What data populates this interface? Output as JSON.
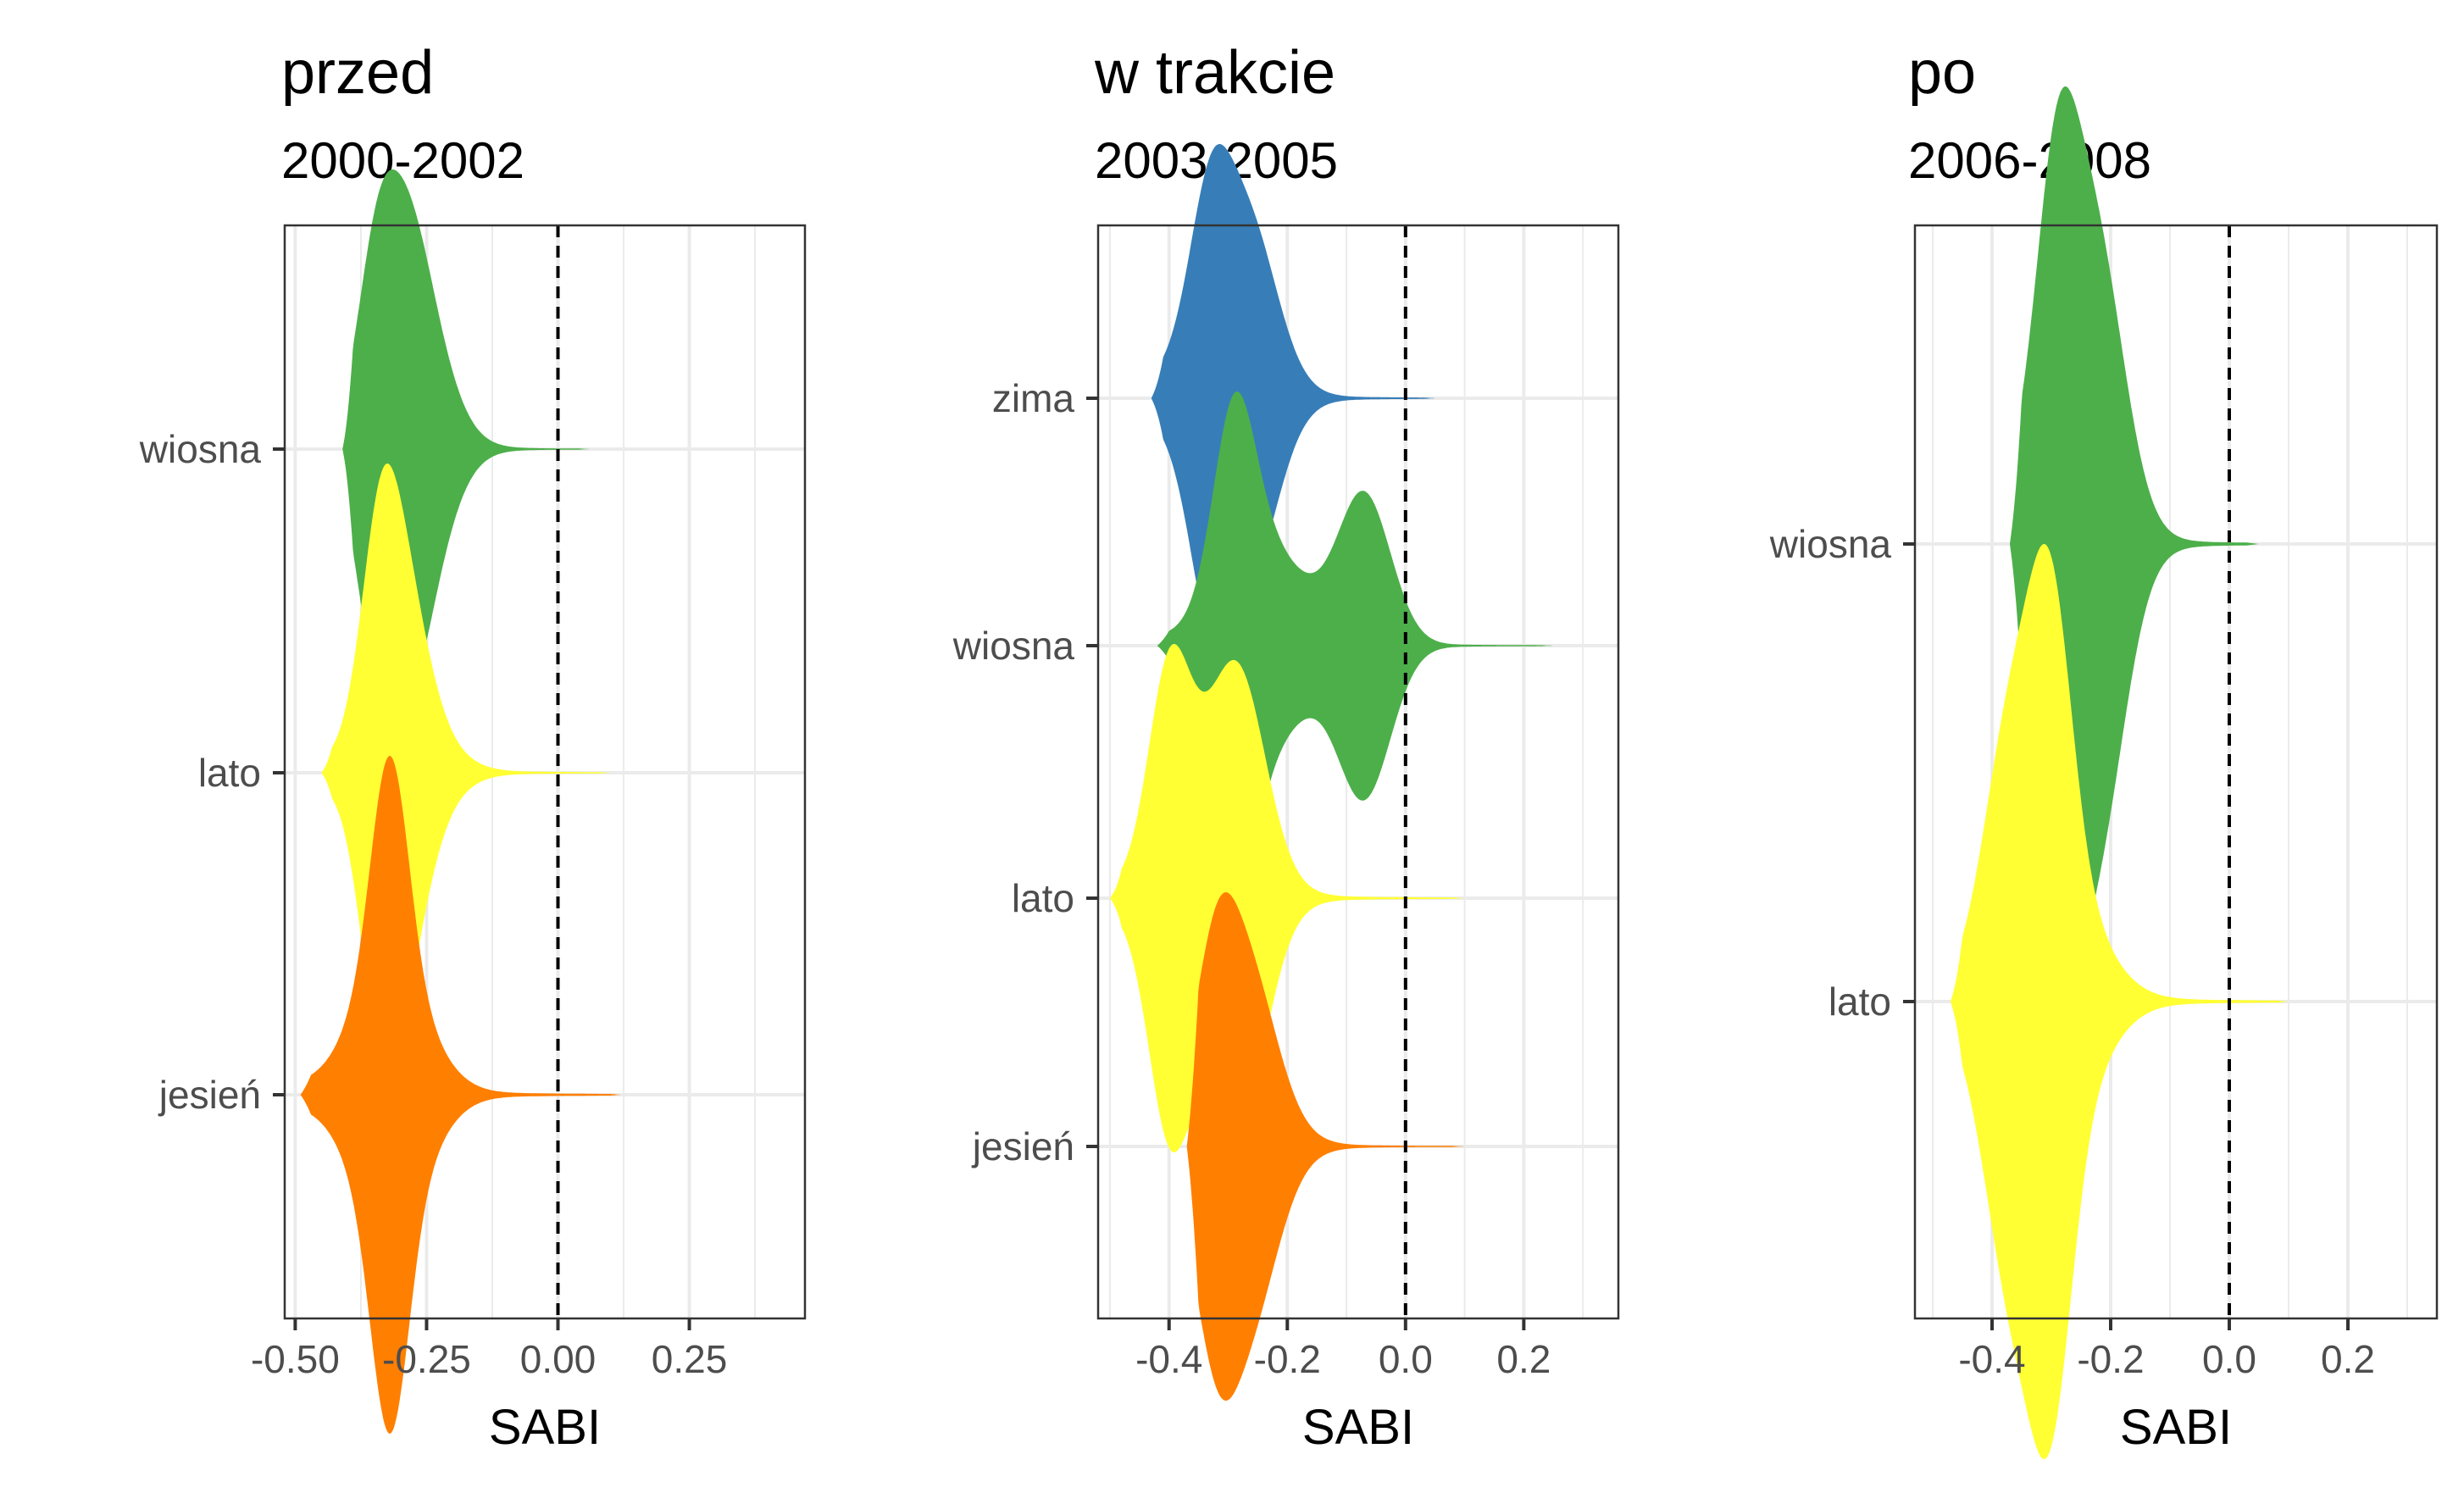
{
  "chart_data": [
    {
      "type": "violin",
      "title": "przed",
      "subtitle": "2000-2002",
      "xlabel": "SABI",
      "xlim": [
        -0.52,
        0.47
      ],
      "xticks": [
        -0.5,
        -0.25,
        0.0,
        0.25
      ],
      "xtick_labels": [
        "-0.50",
        "-0.25",
        "0.00",
        "0.25"
      ],
      "reference_line": 0.0,
      "categories": [
        "wiosna",
        "lato",
        "jesień"
      ],
      "series": [
        {
          "season": "wiosna",
          "color": "#4daf4a",
          "range": [
            -0.41,
            0.06
          ],
          "peaks": [
            -0.35,
            -0.3,
            -0.27
          ],
          "median": -0.29
        },
        {
          "season": "lato",
          "color": "#ffff33",
          "range": [
            -0.45,
            0.1
          ],
          "peaks": [
            -0.34,
            -0.3
          ],
          "median": -0.3
        },
        {
          "season": "jesień",
          "color": "#ff7f00",
          "range": [
            -0.49,
            0.12
          ],
          "peaks": [
            -0.32
          ],
          "median": -0.32
        }
      ]
    },
    {
      "type": "violin",
      "title": "w trakcie",
      "subtitle": "2003-2005",
      "xlabel": "SABI",
      "xlim": [
        -0.52,
        0.36
      ],
      "xticks": [
        -0.4,
        -0.2,
        0.0,
        0.2
      ],
      "xtick_labels": [
        "-0.4",
        "-0.2",
        "0.0",
        "0.2"
      ],
      "reference_line": 0.0,
      "categories": [
        "zima",
        "wiosna",
        "lato",
        "jesień"
      ],
      "series": [
        {
          "season": "zima",
          "color": "#377eb8",
          "range": [
            -0.43,
            0.05
          ],
          "peaks": [
            -0.33,
            -0.26
          ],
          "median": -0.31
        },
        {
          "season": "wiosna",
          "color": "#4daf4a",
          "range": [
            -0.42,
            0.25
          ],
          "peaks": [
            -0.29,
            -0.07
          ],
          "median": -0.24
        },
        {
          "season": "lato",
          "color": "#ffff33",
          "range": [
            -0.5,
            0.1
          ],
          "peaks": [
            -0.4,
            -0.28
          ],
          "median": -0.33
        },
        {
          "season": "jesień",
          "color": "#ff7f00",
          "range": [
            -0.37,
            0.1
          ],
          "peaks": [
            -0.32,
            -0.26
          ],
          "median": -0.3
        }
      ]
    },
    {
      "type": "violin",
      "title": "po",
      "subtitle": "2006-2008",
      "xlabel": "SABI",
      "xlim": [
        -0.53,
        0.35
      ],
      "xticks": [
        -0.4,
        -0.2,
        0.0,
        0.2
      ],
      "xtick_labels": [
        "-0.4",
        "-0.2",
        "0.0",
        "0.2"
      ],
      "reference_line": 0.0,
      "categories": [
        "wiosna",
        "lato"
      ],
      "series": [
        {
          "season": "wiosna",
          "color": "#4daf4a",
          "range": [
            -0.37,
            0.05
          ],
          "peaks": [
            -0.29,
            -0.22
          ],
          "median": -0.28
        },
        {
          "season": "lato",
          "color": "#ffff33",
          "range": [
            -0.47,
            0.1
          ],
          "peaks": [
            -0.3,
            -0.37
          ],
          "median": -0.3
        }
      ]
    }
  ]
}
